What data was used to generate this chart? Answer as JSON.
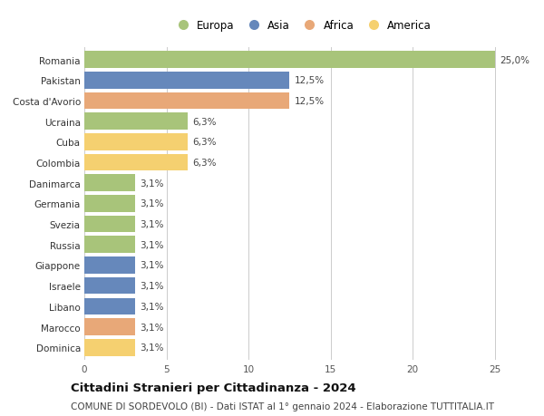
{
  "countries": [
    "Romania",
    "Pakistan",
    "Costa d'Avorio",
    "Ucraina",
    "Cuba",
    "Colombia",
    "Danimarca",
    "Germania",
    "Svezia",
    "Russia",
    "Giappone",
    "Israele",
    "Libano",
    "Marocco",
    "Dominica"
  ],
  "values": [
    25.0,
    12.5,
    12.5,
    6.3,
    6.3,
    6.3,
    3.1,
    3.1,
    3.1,
    3.1,
    3.1,
    3.1,
    3.1,
    3.1,
    3.1
  ],
  "labels": [
    "25,0%",
    "12,5%",
    "12,5%",
    "6,3%",
    "6,3%",
    "6,3%",
    "3,1%",
    "3,1%",
    "3,1%",
    "3,1%",
    "3,1%",
    "3,1%",
    "3,1%",
    "3,1%",
    "3,1%"
  ],
  "continents": [
    "Europa",
    "Asia",
    "Africa",
    "Europa",
    "America",
    "America",
    "Europa",
    "Europa",
    "Europa",
    "Europa",
    "Asia",
    "Asia",
    "Asia",
    "Africa",
    "America"
  ],
  "colors": {
    "Europa": "#a8c47a",
    "Asia": "#6688bb",
    "Africa": "#e8a878",
    "America": "#f5d070"
  },
  "legend_order": [
    "Europa",
    "Asia",
    "Africa",
    "America"
  ],
  "xlim": [
    0,
    26.5
  ],
  "xticks": [
    0,
    5,
    10,
    15,
    20,
    25
  ],
  "title": "Cittadini Stranieri per Cittadinanza - 2024",
  "subtitle": "COMUNE DI SORDEVOLO (BI) - Dati ISTAT al 1° gennaio 2024 - Elaborazione TUTTITALIA.IT",
  "bg_color": "#ffffff",
  "grid_color": "#cccccc",
  "bar_height": 0.82,
  "title_fontsize": 9.5,
  "subtitle_fontsize": 7.5,
  "tick_fontsize": 7.5,
  "label_fontsize": 7.5
}
